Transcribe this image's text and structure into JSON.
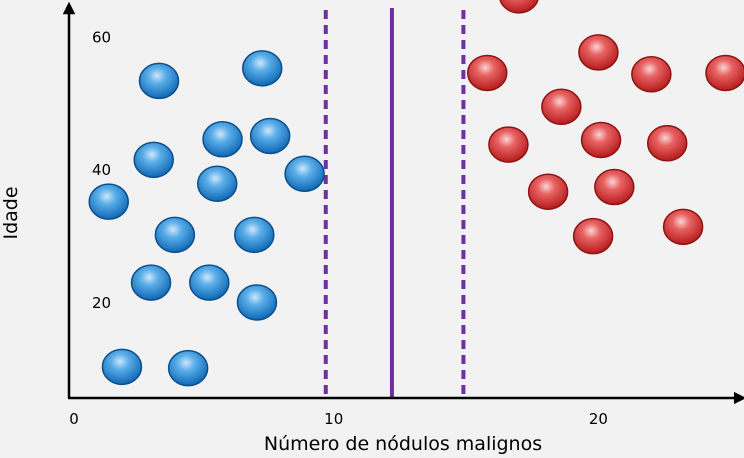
{
  "chart_data": {
    "type": "scatter",
    "title": "",
    "xlabel": "Número de nódulos malignos",
    "ylabel": "Idade",
    "xlim": [
      0,
      25.5
    ],
    "ylim": [
      5.5,
      65.5
    ],
    "x_ticks": [
      {
        "value": 0,
        "label": "0"
      },
      {
        "value": 10,
        "label": "10"
      },
      {
        "value": 20,
        "label": "20"
      }
    ],
    "y_ticks": [
      {
        "value": 20,
        "label": "20"
      },
      {
        "value": 40,
        "label": "40"
      },
      {
        "value": 60,
        "label": "60"
      }
    ],
    "decision_boundary": {
      "x": 12.2,
      "color": "#7030a0"
    },
    "margins": [
      {
        "x": 9.7
      },
      {
        "x": 14.9
      }
    ],
    "margin_color": "#7030a0",
    "series": [
      {
        "color": "#1f7fd0",
        "points": [
          {
            "x": 3.4,
            "y": 53.3
          },
          {
            "x": 7.3,
            "y": 55.2
          },
          {
            "x": 5.8,
            "y": 44.5
          },
          {
            "x": 7.6,
            "y": 45.0
          },
          {
            "x": 3.2,
            "y": 41.4
          },
          {
            "x": 5.6,
            "y": 37.8
          },
          {
            "x": 8.9,
            "y": 39.3
          },
          {
            "x": 1.5,
            "y": 35.1
          },
          {
            "x": 4.0,
            "y": 30.1
          },
          {
            "x": 7.0,
            "y": 30.1
          },
          {
            "x": 3.1,
            "y": 22.9
          },
          {
            "x": 5.3,
            "y": 22.9
          },
          {
            "x": 7.1,
            "y": 19.9
          },
          {
            "x": 2.0,
            "y": 10.2
          },
          {
            "x": 4.5,
            "y": 10.0
          }
        ]
      },
      {
        "color": "#d42b2b",
        "points": [
          {
            "x": 17.0,
            "y": 66.2
          },
          {
            "x": 20.0,
            "y": 57.6
          },
          {
            "x": 15.8,
            "y": 54.5
          },
          {
            "x": 22.0,
            "y": 54.3
          },
          {
            "x": 24.8,
            "y": 54.5
          },
          {
            "x": 18.6,
            "y": 49.4
          },
          {
            "x": 16.6,
            "y": 43.7
          },
          {
            "x": 20.1,
            "y": 44.4
          },
          {
            "x": 22.6,
            "y": 43.9
          },
          {
            "x": 18.1,
            "y": 36.6
          },
          {
            "x": 20.6,
            "y": 37.3
          },
          {
            "x": 23.2,
            "y": 31.3
          },
          {
            "x": 19.8,
            "y": 29.9
          }
        ]
      }
    ]
  }
}
